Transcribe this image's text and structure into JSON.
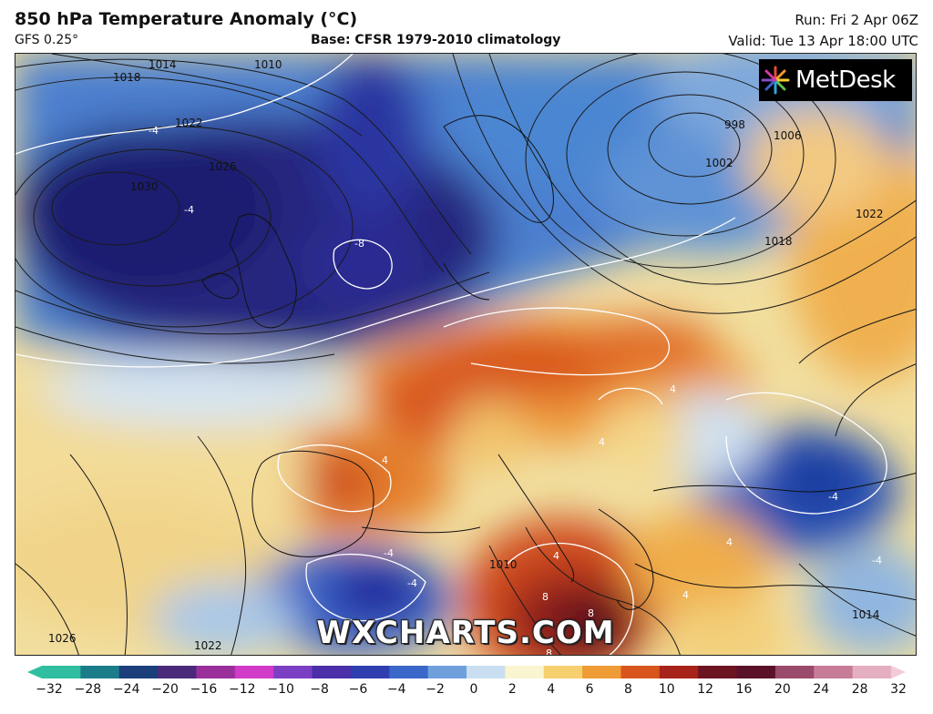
{
  "header": {
    "title": "850 hPa Temperature Anomaly (°C)",
    "model": "GFS 0.25°",
    "base": "Base: CFSR 1979-2010 climatology",
    "run": "Run: Fri 2 Apr 06Z",
    "valid": "Valid: Tue 13 Apr 18:00 UTC"
  },
  "brand": {
    "logo_text": "MetDesk",
    "watermark": "WXCHARTS.COM"
  },
  "pressure_labels": [
    "1014",
    "1010",
    "1018",
    "1022",
    "1026",
    "1030",
    "998",
    "1002",
    "1006",
    "1018",
    "1022",
    "1010",
    "1026",
    "1022",
    "1014"
  ],
  "anomaly_labels": [
    "-4",
    "-8",
    "-4",
    "4",
    "4",
    "4",
    "4",
    "-4",
    "-4",
    "-4",
    "4",
    "4",
    "-4",
    "8",
    "8",
    "8"
  ],
  "colorbar": {
    "ticks": [
      "−32",
      "−28",
      "−24",
      "−20",
      "−16",
      "−12",
      "−10",
      "−8",
      "−6",
      "−4",
      "−2",
      "0",
      "2",
      "4",
      "6",
      "8",
      "10",
      "12",
      "16",
      "20",
      "24",
      "28",
      "32"
    ],
    "colors": [
      "#2fbfa0",
      "#1b7d8a",
      "#1a3f7a",
      "#4b2a7a",
      "#9a2f9c",
      "#d23ac9",
      "#7b3fc4",
      "#4a2fa8",
      "#2f3fb0",
      "#3a67c8",
      "#6fa0dc",
      "#c9def0",
      "#fbf4d0",
      "#f6cf6e",
      "#ef9b36",
      "#d9551e",
      "#a8241a",
      "#6d1422",
      "#5a1228",
      "#9a4a6a",
      "#c77c97",
      "#e5afc2"
    ]
  }
}
